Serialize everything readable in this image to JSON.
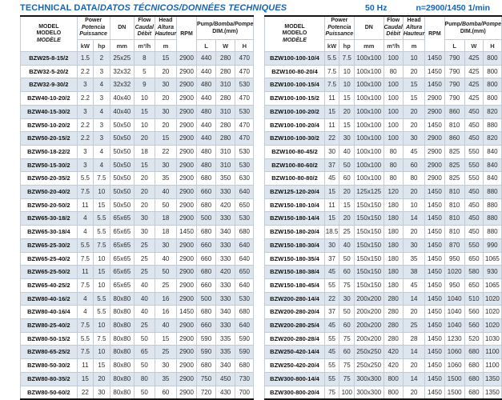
{
  "page": {
    "title_en": "TECHNICAL DATA/",
    "title_intl": "DATOS TÉCNICOS/DONNÉES TECHNIQUES",
    "frequency": "50 Hz",
    "speed": "n=2900/1450 1/min"
  },
  "colors": {
    "accent_blue": "#1a63ae",
    "row_shade": "#dde5ee"
  },
  "header": {
    "model": [
      "MODEL",
      "MODELO",
      "MODÈLE"
    ],
    "power": [
      "Power",
      "Potencia",
      "Puissance"
    ],
    "kw": "kW",
    "hp": "hp",
    "dn": "DN",
    "dn_unit": "mm",
    "flow": [
      "Flow",
      "Caudal",
      "Débit"
    ],
    "flow_unit": "m³/h",
    "head": [
      "Head",
      "Altura",
      "Hauteur"
    ],
    "head_unit": "m",
    "rpm": "RPM",
    "pump_en": "Pump",
    "pump_intl": "/Bomba/Pompe",
    "dim_label": "DIM.(mm)",
    "dim_l": "L",
    "dim_w": "W",
    "dim_h": "H"
  },
  "tables": {
    "left": {
      "rows": [
        [
          "BZW25-8-15/2",
          "1.5",
          "2",
          "25x25",
          "8",
          "15",
          "2900",
          "440",
          "280",
          "470"
        ],
        [
          "BZW32-5-20/2",
          "2.2",
          "3",
          "32x32",
          "5",
          "20",
          "2900",
          "440",
          "280",
          "470"
        ],
        [
          "BZW32-9-30/2",
          "3",
          "4",
          "32x32",
          "9",
          "30",
          "2900",
          "480",
          "310",
          "530"
        ],
        [
          "BZW40-10-20/2",
          "2.2",
          "3",
          "40x40",
          "10",
          "20",
          "2900",
          "440",
          "280",
          "470"
        ],
        [
          "BZW40-15-30/2",
          "3",
          "4",
          "40x40",
          "15",
          "30",
          "2900",
          "480",
          "310",
          "530"
        ],
        [
          "BZW50-10-20/2",
          "2.2",
          "3",
          "50x50",
          "10",
          "20",
          "2900",
          "440",
          "280",
          "470"
        ],
        [
          "BZW50-20-15/2",
          "2.2",
          "3",
          "50x50",
          "20",
          "15",
          "2900",
          "440",
          "280",
          "470"
        ],
        [
          "BZW50-18-22/2",
          "3",
          "4",
          "50x50",
          "18",
          "22",
          "2900",
          "480",
          "310",
          "530"
        ],
        [
          "BZW50-15-30/2",
          "3",
          "4",
          "50x50",
          "15",
          "30",
          "2900",
          "480",
          "310",
          "530"
        ],
        [
          "BZW50-20-35/2",
          "5.5",
          "7.5",
          "50x50",
          "20",
          "35",
          "2900",
          "680",
          "350",
          "630"
        ],
        [
          "BZW50-20-40/2",
          "7.5",
          "10",
          "50x50",
          "20",
          "40",
          "2900",
          "660",
          "330",
          "640"
        ],
        [
          "BZW50-20-50/2",
          "11",
          "15",
          "50x50",
          "20",
          "50",
          "2900",
          "680",
          "420",
          "650"
        ],
        [
          "BZW65-30-18/2",
          "4",
          "5.5",
          "65x65",
          "30",
          "18",
          "2900",
          "500",
          "330",
          "530"
        ],
        [
          "BZW65-30-18/4",
          "4",
          "5.5",
          "65x65",
          "30",
          "18",
          "1450",
          "680",
          "340",
          "680"
        ],
        [
          "BZW65-25-30/2",
          "5.5",
          "7.5",
          "65x65",
          "25",
          "30",
          "2900",
          "660",
          "330",
          "640"
        ],
        [
          "BZW65-25-40/2",
          "7.5",
          "10",
          "65x65",
          "25",
          "40",
          "2900",
          "660",
          "330",
          "640"
        ],
        [
          "BZW65-25-50/2",
          "11",
          "15",
          "65x65",
          "25",
          "50",
          "2900",
          "680",
          "420",
          "650"
        ],
        [
          "BZW65-40-25/2",
          "7.5",
          "10",
          "65x65",
          "40",
          "25",
          "2900",
          "660",
          "330",
          "640"
        ],
        [
          "BZW80-40-16/2",
          "4",
          "5.5",
          "80x80",
          "40",
          "16",
          "2900",
          "500",
          "330",
          "530"
        ],
        [
          "BZW80-40-16/4",
          "4",
          "5.5",
          "80x80",
          "40",
          "16",
          "1450",
          "680",
          "340",
          "680"
        ],
        [
          "BZW80-25-40/2",
          "7.5",
          "10",
          "80x80",
          "25",
          "40",
          "2900",
          "660",
          "330",
          "640"
        ],
        [
          "BZW80-50-15/2",
          "5.5",
          "7.5",
          "80x80",
          "50",
          "15",
          "2900",
          "590",
          "335",
          "590"
        ],
        [
          "BZW80-65-25/2",
          "7.5",
          "10",
          "80x80",
          "65",
          "25",
          "2900",
          "590",
          "335",
          "590"
        ],
        [
          "BZW80-50-30/2",
          "11",
          "15",
          "80x80",
          "50",
          "30",
          "2900",
          "680",
          "340",
          "680"
        ],
        [
          "BZW80-80-35/2",
          "15",
          "20",
          "80x80",
          "80",
          "35",
          "2900",
          "750",
          "450",
          "730"
        ],
        [
          "BZW80-50-60/2",
          "22",
          "30",
          "80x80",
          "50",
          "60",
          "2900",
          "720",
          "430",
          "700"
        ]
      ]
    },
    "right": {
      "rows": [
        [
          "BZW100-100-10/4",
          "5.5",
          "7.5",
          "100x100",
          "100",
          "10",
          "1450",
          "790",
          "425",
          "800"
        ],
        [
          "BZW100-80-20/4",
          "7.5",
          "10",
          "100x100",
          "80",
          "20",
          "1450",
          "790",
          "425",
          "800"
        ],
        [
          "BZW100-100-15/4",
          "7.5",
          "10",
          "100x100",
          "100",
          "15",
          "1450",
          "790",
          "425",
          "800"
        ],
        [
          "BZW100-100-15/2",
          "11",
          "15",
          "100x100",
          "100",
          "15",
          "2900",
          "790",
          "425",
          "800"
        ],
        [
          "BZW100-100-20/2",
          "15",
          "20",
          "100x100",
          "100",
          "20",
          "2900",
          "860",
          "450",
          "820"
        ],
        [
          "BZW100-100-20/4",
          "11",
          "15",
          "100x100",
          "100",
          "20",
          "1450",
          "810",
          "450",
          "880"
        ],
        [
          "BZW100-100-30/2",
          "22",
          "30",
          "100x100",
          "100",
          "30",
          "2900",
          "860",
          "450",
          "820"
        ],
        [
          "BZW100-80-45/2",
          "30",
          "40",
          "100x100",
          "80",
          "45",
          "2900",
          "825",
          "550",
          "840"
        ],
        [
          "BZW100-80-60/2",
          "37",
          "50",
          "100x100",
          "80",
          "60",
          "2900",
          "825",
          "550",
          "840"
        ],
        [
          "BZW100-80-80/2",
          "45",
          "60",
          "100x100",
          "80",
          "80",
          "2900",
          "825",
          "550",
          "840"
        ],
        [
          "BZW125-120-20/4",
          "15",
          "20",
          "125x125",
          "120",
          "20",
          "1450",
          "810",
          "450",
          "880"
        ],
        [
          "BZW150-180-10/4",
          "11",
          "15",
          "150x150",
          "180",
          "10",
          "1450",
          "810",
          "450",
          "880"
        ],
        [
          "BZW150-180-14/4",
          "15",
          "20",
          "150x150",
          "180",
          "14",
          "1450",
          "810",
          "450",
          "880"
        ],
        [
          "BZW150-180-20/4",
          "18.5",
          "25",
          "150x150",
          "180",
          "20",
          "1450",
          "810",
          "450",
          "880"
        ],
        [
          "BZW150-180-30/4",
          "30",
          "40",
          "150x150",
          "180",
          "30",
          "1450",
          "870",
          "550",
          "990"
        ],
        [
          "BZW150-180-35/4",
          "37",
          "50",
          "150x150",
          "180",
          "35",
          "1450",
          "950",
          "650",
          "1065"
        ],
        [
          "BZW150-180-38/4",
          "45",
          "60",
          "150x150",
          "180",
          "38",
          "1450",
          "1020",
          "580",
          "930"
        ],
        [
          "BZW150-180-45/4",
          "55",
          "75",
          "150x150",
          "180",
          "45",
          "1450",
          "950",
          "650",
          "1065"
        ],
        [
          "BZW200-280-14/4",
          "22",
          "30",
          "200x200",
          "280",
          "14",
          "1450",
          "1040",
          "510",
          "1020"
        ],
        [
          "BZW200-280-20/4",
          "37",
          "50",
          "200x200",
          "280",
          "20",
          "1450",
          "1040",
          "560",
          "1020"
        ],
        [
          "BZW200-280-25/4",
          "45",
          "60",
          "200x200",
          "280",
          "25",
          "1450",
          "1040",
          "560",
          "1020"
        ],
        [
          "BZW200-280-28/4",
          "55",
          "75",
          "200x200",
          "280",
          "28",
          "1450",
          "1230",
          "520",
          "1030"
        ],
        [
          "BZW250-420-14/4",
          "45",
          "60",
          "250x250",
          "420",
          "14",
          "1450",
          "1060",
          "680",
          "1100"
        ],
        [
          "BZW250-420-20/4",
          "55",
          "75",
          "250x250",
          "420",
          "20",
          "1450",
          "1060",
          "680",
          "1100"
        ],
        [
          "BZW300-800-14/4",
          "55",
          "75",
          "300x300",
          "800",
          "14",
          "1450",
          "1500",
          "680",
          "1350"
        ],
        [
          "BZW300-800-20/4",
          "75",
          "100",
          "300x300",
          "800",
          "20",
          "1450",
          "1500",
          "680",
          "1350"
        ]
      ]
    }
  }
}
